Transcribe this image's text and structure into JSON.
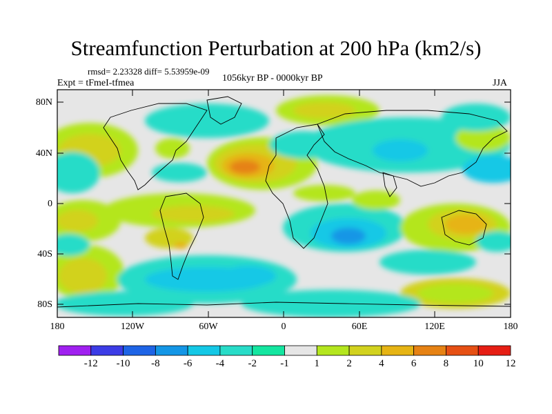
{
  "title": "Streamfunction Perturbation at 200 hPa (km2/s)",
  "stats": "rmsd= 2.23328 diff= 5.53959e-09",
  "experiment": "Expt = tFmeI-tfmea",
  "period": "1056kyr BP - 0000kyr BP",
  "season": "JJA",
  "lat_ticks": [
    "80N",
    "40N",
    "0",
    "40S",
    "80S"
  ],
  "lon_ticks": [
    "180",
    "120W",
    "60W",
    "0",
    "60E",
    "120E",
    "180"
  ],
  "colorbar": {
    "labels": [
      "-12",
      "-10",
      "-8",
      "-6",
      "-4",
      "-2",
      "-1",
      "1",
      "2",
      "4",
      "6",
      "8",
      "10",
      "12"
    ],
    "colors": [
      "#a020f0",
      "#3c3ce6",
      "#1e64e6",
      "#1496e6",
      "#14c8e6",
      "#28dcc8",
      "#14e6a0",
      "#e6e6e6",
      "#b4e61e",
      "#d2d21e",
      "#e6b414",
      "#e68214",
      "#e65014",
      "#e61e14"
    ]
  },
  "colors": {
    "neutral": "#e6e6e6",
    "coast": "#000000"
  }
}
